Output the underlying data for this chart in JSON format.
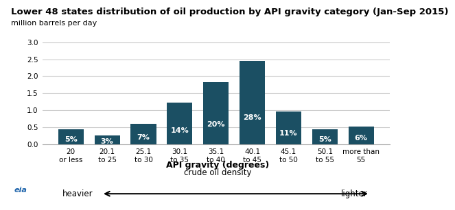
{
  "title": "Lower 48 states distribution of oil production by API gravity category (Jan-Sep 2015)",
  "subtitle": "million barrels per day",
  "categories": [
    "20\nor less",
    "20.1\nto 25",
    "25.1\nto 30",
    "30.1\nto 35",
    "35.1\nto 40",
    "40.1\nto 45",
    "45.1\nto 50",
    "50.1\nto 55",
    "more than\n55"
  ],
  "values": [
    0.44,
    0.26,
    0.61,
    1.22,
    1.82,
    2.46,
    0.97,
    0.44,
    0.53
  ],
  "percentages": [
    "5%",
    "3%",
    "7%",
    "14%",
    "20%",
    "28%",
    "11%",
    "5%",
    "6%"
  ],
  "bar_color": "#1b4f63",
  "xlabel1": "API gravity (degrees)",
  "xlabel2": "crude oil density",
  "ylim": [
    0,
    3.0
  ],
  "yticks": [
    0.0,
    0.5,
    1.0,
    1.5,
    2.0,
    2.5,
    3.0
  ],
  "title_fontsize": 9.5,
  "subtitle_fontsize": 8,
  "xlabel_fontsize": 9,
  "tick_fontsize": 7.5,
  "pct_fontsize": 8,
  "arrow_text_left": "heavier",
  "arrow_text_right": "lighter",
  "background_color": "#ffffff",
  "grid_color": "#cccccc",
  "eia_logo_text": "eia"
}
